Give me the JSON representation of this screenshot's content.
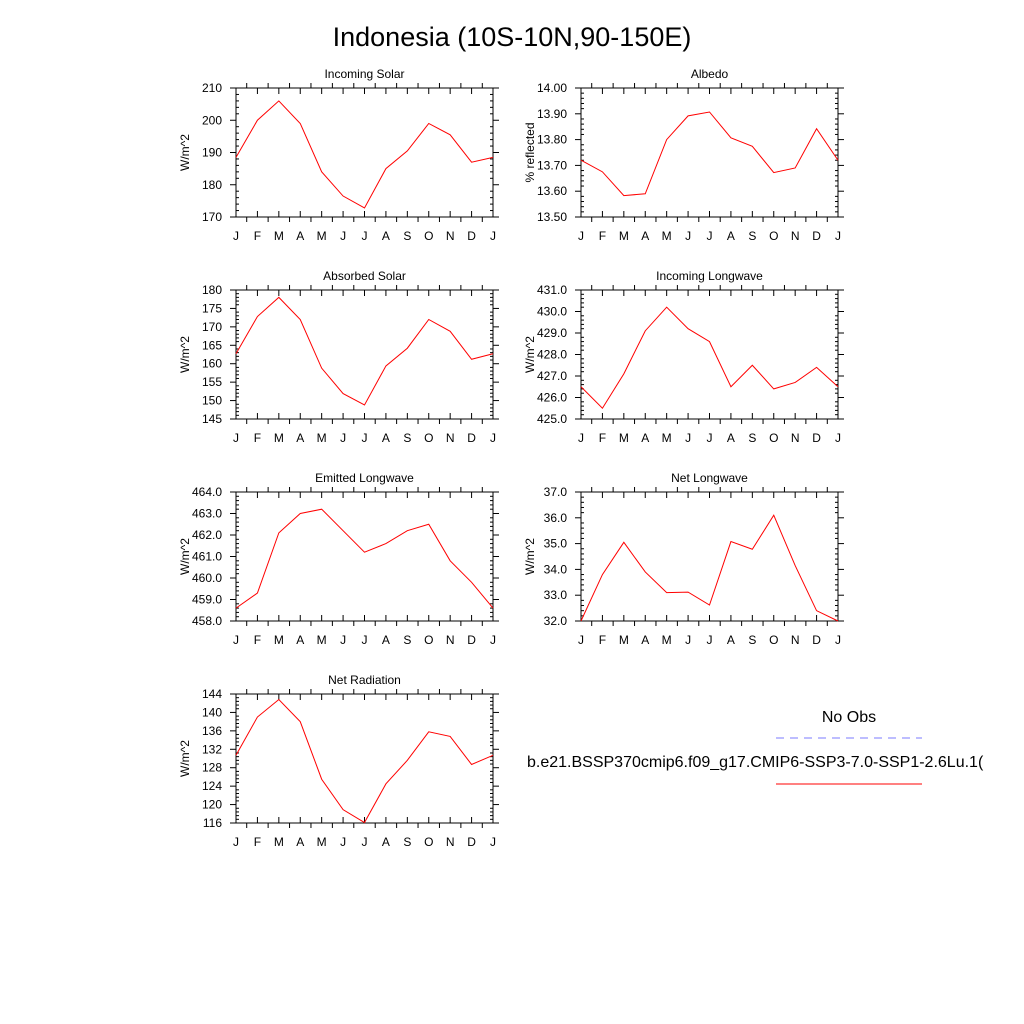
{
  "figure": {
    "title": "Indonesia (10S-10N,90-150E)"
  },
  "colors": {
    "model_line": "#ff0000",
    "obs_line": "#7b7bff",
    "axis": "#000000"
  },
  "legend": {
    "obs_label": "No Obs",
    "model_label": "b.e21.BSSP370cmip6.f09_g17.CMIP6-SSP3-7.0-SSP1-2.6Lu.1("
  },
  "chart_data": [
    {
      "id": "incoming-solar",
      "type": "line",
      "title": "Incoming Solar",
      "ylabel": "W/m^2",
      "categories": [
        "J",
        "F",
        "M",
        "A",
        "M",
        "J",
        "J",
        "A",
        "S",
        "O",
        "N",
        "D",
        "J"
      ],
      "ylim": [
        170,
        210
      ],
      "yticks": [
        170,
        180,
        190,
        200,
        210
      ],
      "ytick_labels": [
        "170",
        "180",
        "190",
        "200",
        "210"
      ],
      "values": [
        188.5,
        200.0,
        206.0,
        199.0,
        184.0,
        176.5,
        172.8,
        185.0,
        190.5,
        199.0,
        195.5,
        187.0,
        188.5
      ]
    },
    {
      "id": "albedo",
      "type": "line",
      "title": "Albedo",
      "ylabel": "% reflected",
      "categories": [
        "J",
        "F",
        "M",
        "A",
        "M",
        "J",
        "J",
        "A",
        "S",
        "O",
        "N",
        "D",
        "J"
      ],
      "ylim": [
        13.5,
        14.0
      ],
      "yticks": [
        13.5,
        13.6,
        13.7,
        13.8,
        13.9,
        14.0
      ],
      "ytick_labels": [
        "13.50",
        "13.60",
        "13.70",
        "13.80",
        "13.90",
        "14.00"
      ],
      "values": [
        13.72,
        13.675,
        13.583,
        13.59,
        13.8,
        13.892,
        13.907,
        13.807,
        13.774,
        13.672,
        13.69,
        13.842,
        13.72
      ]
    },
    {
      "id": "absorbed-solar",
      "type": "line",
      "title": "Absorbed Solar",
      "ylabel": "W/m^2",
      "categories": [
        "J",
        "F",
        "M",
        "A",
        "M",
        "J",
        "J",
        "A",
        "S",
        "O",
        "N",
        "D",
        "J"
      ],
      "ylim": [
        145,
        180
      ],
      "yticks": [
        145,
        150,
        155,
        160,
        165,
        170,
        175,
        180
      ],
      "ytick_labels": [
        "145",
        "150",
        "155",
        "160",
        "165",
        "170",
        "175",
        "180"
      ],
      "values": [
        162.7,
        172.8,
        178.0,
        172.0,
        158.8,
        151.9,
        148.8,
        159.4,
        164.2,
        172.0,
        168.8,
        161.2,
        162.7
      ]
    },
    {
      "id": "incoming-longwave",
      "type": "line",
      "title": "Incoming Longwave",
      "ylabel": "W/m^2",
      "categories": [
        "J",
        "F",
        "M",
        "A",
        "M",
        "J",
        "J",
        "A",
        "S",
        "O",
        "N",
        "D",
        "J"
      ],
      "ylim": [
        425.0,
        431.0
      ],
      "yticks": [
        425,
        426,
        427,
        428,
        429,
        430,
        431
      ],
      "ytick_labels": [
        "425.0",
        "426.0",
        "427.0",
        "428.0",
        "429.0",
        "430.0",
        "431.0"
      ],
      "values": [
        426.5,
        425.5,
        427.1,
        429.1,
        430.2,
        429.2,
        428.6,
        426.5,
        427.5,
        426.4,
        426.7,
        427.4,
        426.5
      ]
    },
    {
      "id": "emitted-longwave",
      "type": "line",
      "title": "Emitted Longwave",
      "ylabel": "W/m^2",
      "categories": [
        "J",
        "F",
        "M",
        "A",
        "M",
        "J",
        "J",
        "A",
        "S",
        "O",
        "N",
        "D",
        "J"
      ],
      "ylim": [
        458.0,
        464.0
      ],
      "yticks": [
        458,
        459,
        460,
        461,
        462,
        463,
        464
      ],
      "ytick_labels": [
        "458.0",
        "459.0",
        "460.0",
        "461.0",
        "462.0",
        "463.0",
        "464.0"
      ],
      "values": [
        458.6,
        459.3,
        462.1,
        463.0,
        463.2,
        462.2,
        461.2,
        461.6,
        462.2,
        462.5,
        460.8,
        459.8,
        458.6
      ]
    },
    {
      "id": "net-longwave",
      "type": "line",
      "title": "Net Longwave",
      "ylabel": "W/m^2",
      "categories": [
        "J",
        "F",
        "M",
        "A",
        "M",
        "J",
        "J",
        "A",
        "S",
        "O",
        "N",
        "D",
        "J"
      ],
      "ylim": [
        32.0,
        37.0
      ],
      "yticks": [
        32,
        33,
        34,
        35,
        36,
        37
      ],
      "ytick_labels": [
        "32.0",
        "33.0",
        "34.0",
        "35.0",
        "36.0",
        "37.0"
      ],
      "values": [
        32.0,
        33.8,
        35.05,
        33.9,
        33.1,
        33.12,
        32.62,
        35.08,
        34.78,
        36.1,
        34.15,
        32.4,
        32.0
      ]
    },
    {
      "id": "net-radiation",
      "type": "line",
      "title": "Net Radiation",
      "ylabel": "W/m^2",
      "categories": [
        "J",
        "F",
        "M",
        "A",
        "M",
        "J",
        "J",
        "A",
        "S",
        "O",
        "N",
        "D",
        "J"
      ],
      "ylim": [
        116,
        144
      ],
      "yticks": [
        116,
        120,
        124,
        128,
        132,
        136,
        140,
        144
      ],
      "ytick_labels": [
        "116",
        "120",
        "124",
        "128",
        "132",
        "136",
        "140",
        "144"
      ],
      "values": [
        130.7,
        139.0,
        142.8,
        138.0,
        125.5,
        118.9,
        116.1,
        124.5,
        129.6,
        135.8,
        134.8,
        128.7,
        130.7
      ]
    }
  ]
}
